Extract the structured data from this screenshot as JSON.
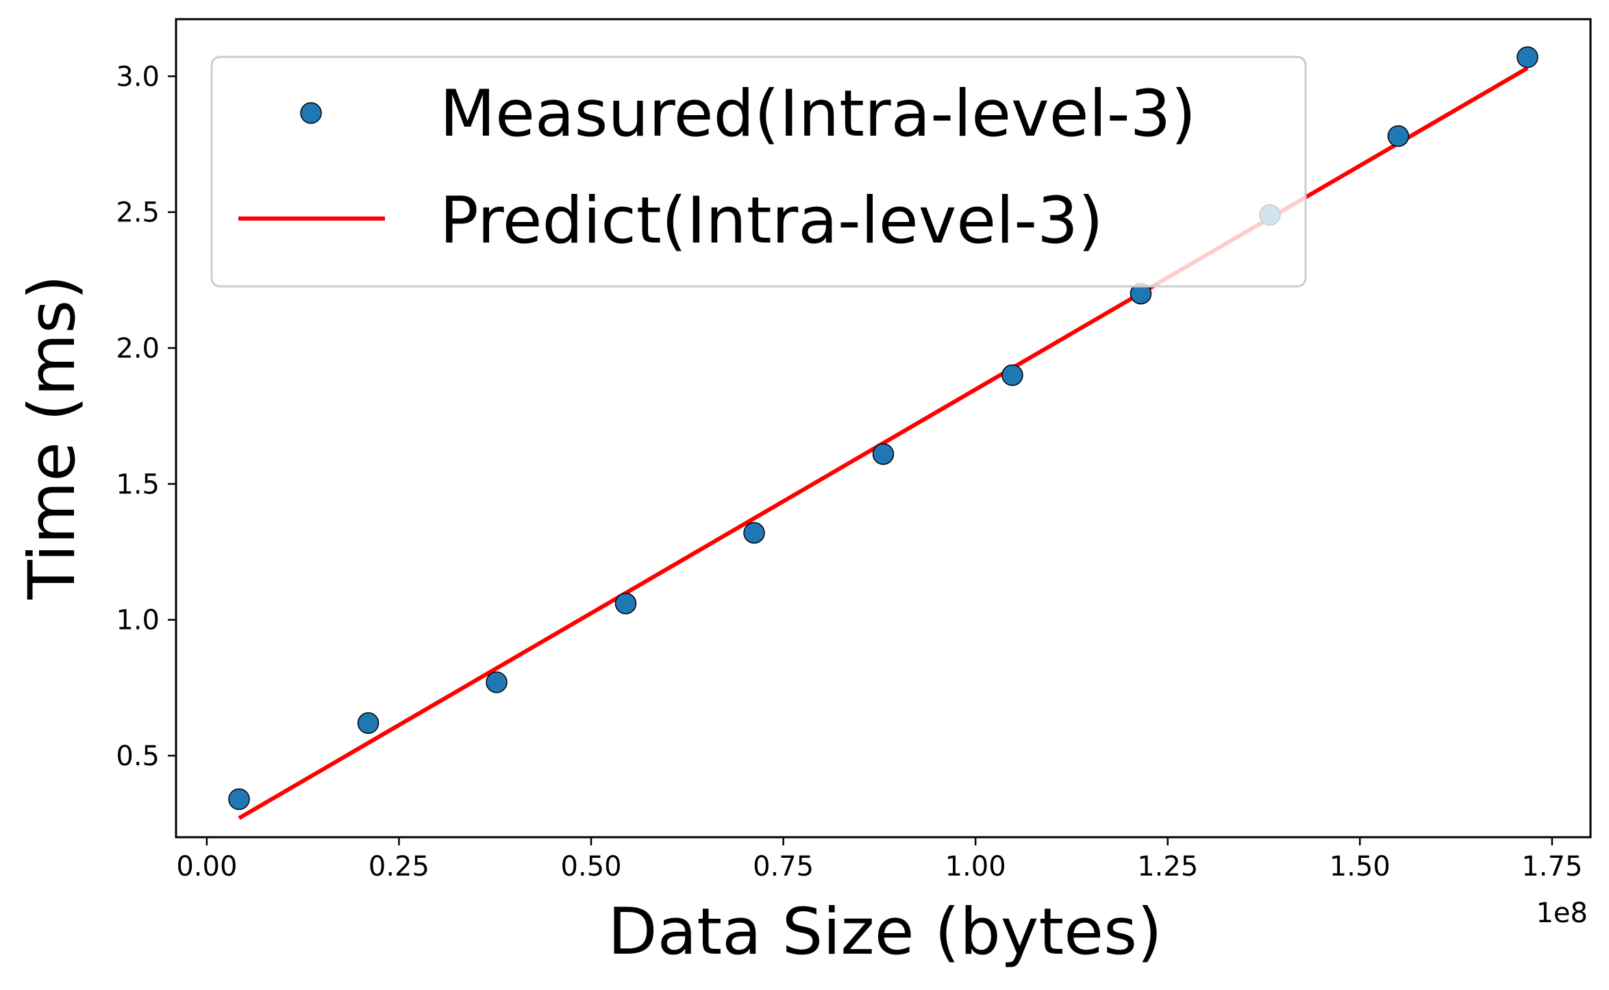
{
  "chart_data": {
    "type": "scatter",
    "title": "",
    "xlabel": "Data Size (bytes)",
    "ylabel": "Time (ms)",
    "x_offset_label": "1e8",
    "xlim": [
      -0.04,
      1.8
    ],
    "ylim": [
      0.2,
      3.21
    ],
    "xticks": [
      0.0,
      0.25,
      0.5,
      0.75,
      1.0,
      1.25,
      1.5,
      1.75
    ],
    "xtick_labels": [
      "0.00",
      "0.25",
      "0.50",
      "0.75",
      "1.00",
      "1.25",
      "1.50",
      "1.75"
    ],
    "yticks": [
      0.5,
      1.0,
      1.5,
      2.0,
      2.5,
      3.0
    ],
    "ytick_labels": [
      "0.5",
      "1.0",
      "1.5",
      "2.0",
      "2.5",
      "3.0"
    ],
    "grid": false,
    "legend_position": "top-left",
    "series": [
      {
        "name": "Measured(Intra-level-3)",
        "kind": "scatter",
        "color": "#1f77b4",
        "x": [
          0.042,
          0.21,
          0.377,
          0.545,
          0.712,
          0.88,
          1.048,
          1.215,
          1.383,
          1.55,
          1.718
        ],
        "y": [
          0.34,
          0.62,
          0.77,
          1.06,
          1.32,
          1.61,
          1.9,
          2.2,
          2.49,
          2.78,
          3.07
        ]
      },
      {
        "name": "Predict(Intra-level-3)",
        "kind": "line",
        "color": "#ff0000",
        "x": [
          0.042,
          1.718
        ],
        "y": [
          0.27,
          3.03
        ]
      }
    ]
  }
}
